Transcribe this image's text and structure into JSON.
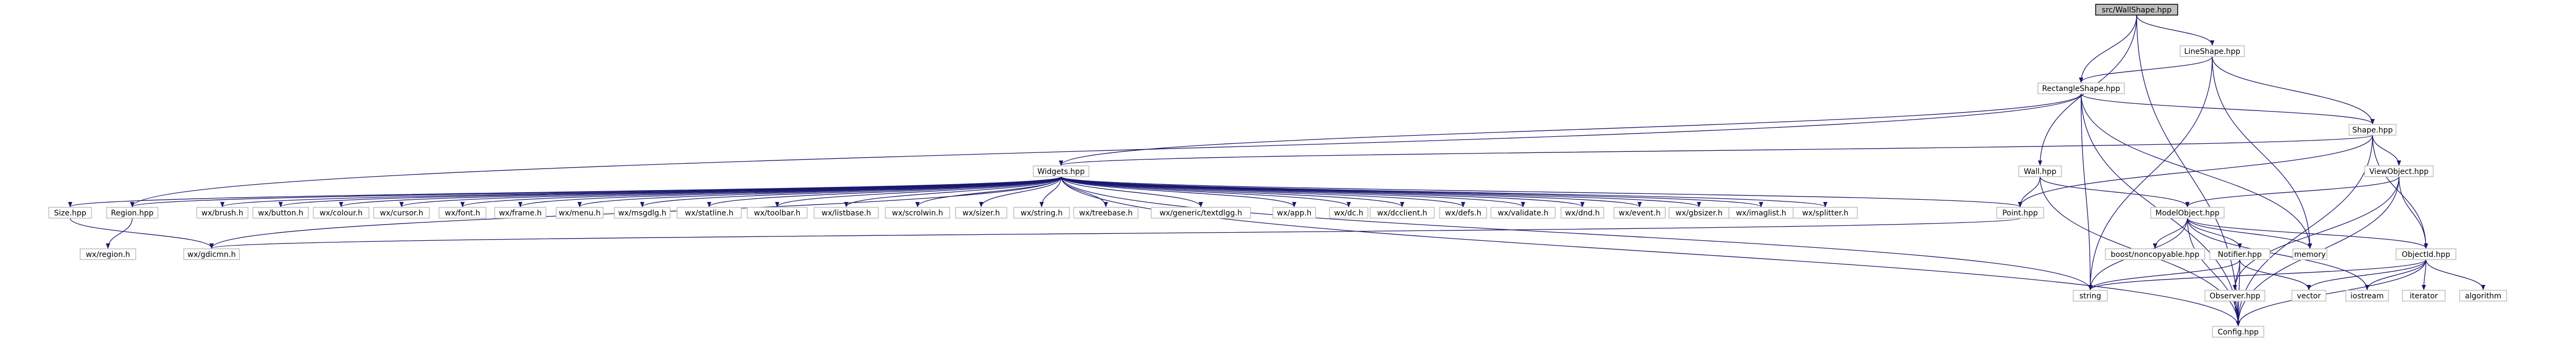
{
  "diagram": {
    "title": "src/WallShape.hpp",
    "edge_color": "#191970",
    "nodes": [
      {
        "id": "WallShape",
        "label": "src/WallShape.hpp"
      },
      {
        "id": "LineShape",
        "label": "LineShape.hpp"
      },
      {
        "id": "RectangleShape",
        "label": "RectangleShape.hpp"
      },
      {
        "id": "Shape",
        "label": "Shape.hpp"
      },
      {
        "id": "Widgets",
        "label": "Widgets.hpp"
      },
      {
        "id": "Wall",
        "label": "Wall.hpp"
      },
      {
        "id": "ViewObject",
        "label": "ViewObject.hpp"
      },
      {
        "id": "ModelObject",
        "label": "ModelObject.hpp"
      },
      {
        "id": "Point",
        "label": "Point.hpp"
      },
      {
        "id": "Size",
        "label": "Size.hpp"
      },
      {
        "id": "Region",
        "label": "Region.hpp"
      },
      {
        "id": "brush",
        "label": "wx/brush.h"
      },
      {
        "id": "button",
        "label": "wx/button.h"
      },
      {
        "id": "colour",
        "label": "wx/colour.h"
      },
      {
        "id": "cursor",
        "label": "wx/cursor.h"
      },
      {
        "id": "font",
        "label": "wx/font.h"
      },
      {
        "id": "frame",
        "label": "wx/frame.h"
      },
      {
        "id": "menu",
        "label": "wx/menu.h"
      },
      {
        "id": "msgdlg",
        "label": "wx/msgdlg.h"
      },
      {
        "id": "statline",
        "label": "wx/statline.h"
      },
      {
        "id": "toolbar",
        "label": "wx/toolbar.h"
      },
      {
        "id": "listbase",
        "label": "wx/listbase.h"
      },
      {
        "id": "scrolwin",
        "label": "wx/scrolwin.h"
      },
      {
        "id": "sizer",
        "label": "wx/sizer.h"
      },
      {
        "id": "wxstring",
        "label": "wx/string.h"
      },
      {
        "id": "treebase",
        "label": "wx/treebase.h"
      },
      {
        "id": "textdlgg",
        "label": "wx/generic/textdlgg.h"
      },
      {
        "id": "app",
        "label": "wx/app.h"
      },
      {
        "id": "dc",
        "label": "wx/dc.h"
      },
      {
        "id": "dcclient",
        "label": "wx/dcclient.h"
      },
      {
        "id": "defs",
        "label": "wx/defs.h"
      },
      {
        "id": "validate",
        "label": "wx/validate.h"
      },
      {
        "id": "dnd",
        "label": "wx/dnd.h"
      },
      {
        "id": "event",
        "label": "wx/event.h"
      },
      {
        "id": "gbsizer",
        "label": "wx/gbsizer.h"
      },
      {
        "id": "imaglist",
        "label": "wx/imaglist.h"
      },
      {
        "id": "splitter",
        "label": "wx/splitter.h"
      },
      {
        "id": "region",
        "label": "wx/region.h"
      },
      {
        "id": "gdicmn",
        "label": "wx/gdicmn.h"
      },
      {
        "id": "boostnc",
        "label": "boost/noncopyable.hpp"
      },
      {
        "id": "Notifier",
        "label": "Notifier.hpp"
      },
      {
        "id": "memory",
        "label": "memory"
      },
      {
        "id": "ObjectId",
        "label": "ObjectId.hpp"
      },
      {
        "id": "string",
        "label": "string"
      },
      {
        "id": "Observer",
        "label": "Observer.hpp"
      },
      {
        "id": "vector",
        "label": "vector"
      },
      {
        "id": "iostream",
        "label": "iostream"
      },
      {
        "id": "iterator",
        "label": "iterator"
      },
      {
        "id": "algorithm",
        "label": "algorithm"
      },
      {
        "id": "Config",
        "label": "Config.hpp"
      }
    ],
    "edges": [
      [
        "WallShape",
        "LineShape"
      ],
      [
        "WallShape",
        "RectangleShape"
      ],
      [
        "WallShape",
        "Wall"
      ],
      [
        "WallShape",
        "Config"
      ],
      [
        "LineShape",
        "RectangleShape"
      ],
      [
        "LineShape",
        "Shape"
      ],
      [
        "LineShape",
        "string"
      ],
      [
        "LineShape",
        "memory"
      ],
      [
        "RectangleShape",
        "Shape"
      ],
      [
        "RectangleShape",
        "Widgets"
      ],
      [
        "RectangleShape",
        "Region"
      ],
      [
        "RectangleShape",
        "memory"
      ],
      [
        "RectangleShape",
        "string"
      ],
      [
        "RectangleShape",
        "Config"
      ],
      [
        "Shape",
        "Widgets"
      ],
      [
        "Shape",
        "Point"
      ],
      [
        "Shape",
        "ViewObject"
      ],
      [
        "Shape",
        "ObjectId"
      ],
      [
        "Shape",
        "Config"
      ],
      [
        "Widgets",
        "Size"
      ],
      [
        "Widgets",
        "Region"
      ],
      [
        "Widgets",
        "gdicmn"
      ],
      [
        "Widgets",
        "brush"
      ],
      [
        "Widgets",
        "button"
      ],
      [
        "Widgets",
        "colour"
      ],
      [
        "Widgets",
        "cursor"
      ],
      [
        "Widgets",
        "font"
      ],
      [
        "Widgets",
        "frame"
      ],
      [
        "Widgets",
        "menu"
      ],
      [
        "Widgets",
        "msgdlg"
      ],
      [
        "Widgets",
        "statline"
      ],
      [
        "Widgets",
        "toolbar"
      ],
      [
        "Widgets",
        "listbase"
      ],
      [
        "Widgets",
        "scrolwin"
      ],
      [
        "Widgets",
        "sizer"
      ],
      [
        "Widgets",
        "wxstring"
      ],
      [
        "Widgets",
        "treebase"
      ],
      [
        "Widgets",
        "textdlgg"
      ],
      [
        "Widgets",
        "app"
      ],
      [
        "Widgets",
        "dc"
      ],
      [
        "Widgets",
        "dcclient"
      ],
      [
        "Widgets",
        "defs"
      ],
      [
        "Widgets",
        "validate"
      ],
      [
        "Widgets",
        "dnd"
      ],
      [
        "Widgets",
        "event"
      ],
      [
        "Widgets",
        "gbsizer"
      ],
      [
        "Widgets",
        "imaglist"
      ],
      [
        "Widgets",
        "splitter"
      ],
      [
        "Widgets",
        "Point"
      ],
      [
        "Widgets",
        "string"
      ],
      [
        "Widgets",
        "Config"
      ],
      [
        "Wall",
        "Point"
      ],
      [
        "Wall",
        "ModelObject"
      ],
      [
        "Wall",
        "Config"
      ],
      [
        "ViewObject",
        "ModelObject"
      ],
      [
        "ViewObject",
        "ObjectId"
      ],
      [
        "ViewObject",
        "Observer"
      ],
      [
        "ViewObject",
        "Config"
      ],
      [
        "Size",
        "gdicmn"
      ],
      [
        "Region",
        "region"
      ],
      [
        "Point",
        "gdicmn"
      ],
      [
        "ModelObject",
        "boostnc"
      ],
      [
        "ModelObject",
        "Notifier"
      ],
      [
        "ModelObject",
        "memory"
      ],
      [
        "ModelObject",
        "ObjectId"
      ],
      [
        "ModelObject",
        "string"
      ],
      [
        "ModelObject",
        "iostream"
      ],
      [
        "ModelObject",
        "Config"
      ],
      [
        "Notifier",
        "Observer"
      ],
      [
        "Notifier",
        "vector"
      ],
      [
        "Notifier",
        "string"
      ],
      [
        "Notifier",
        "Config"
      ],
      [
        "ObjectId",
        "string"
      ],
      [
        "ObjectId",
        "vector"
      ],
      [
        "ObjectId",
        "iostream"
      ],
      [
        "ObjectId",
        "iterator"
      ],
      [
        "ObjectId",
        "algorithm"
      ],
      [
        "ObjectId",
        "Config"
      ],
      [
        "Observer",
        "Config"
      ]
    ]
  }
}
